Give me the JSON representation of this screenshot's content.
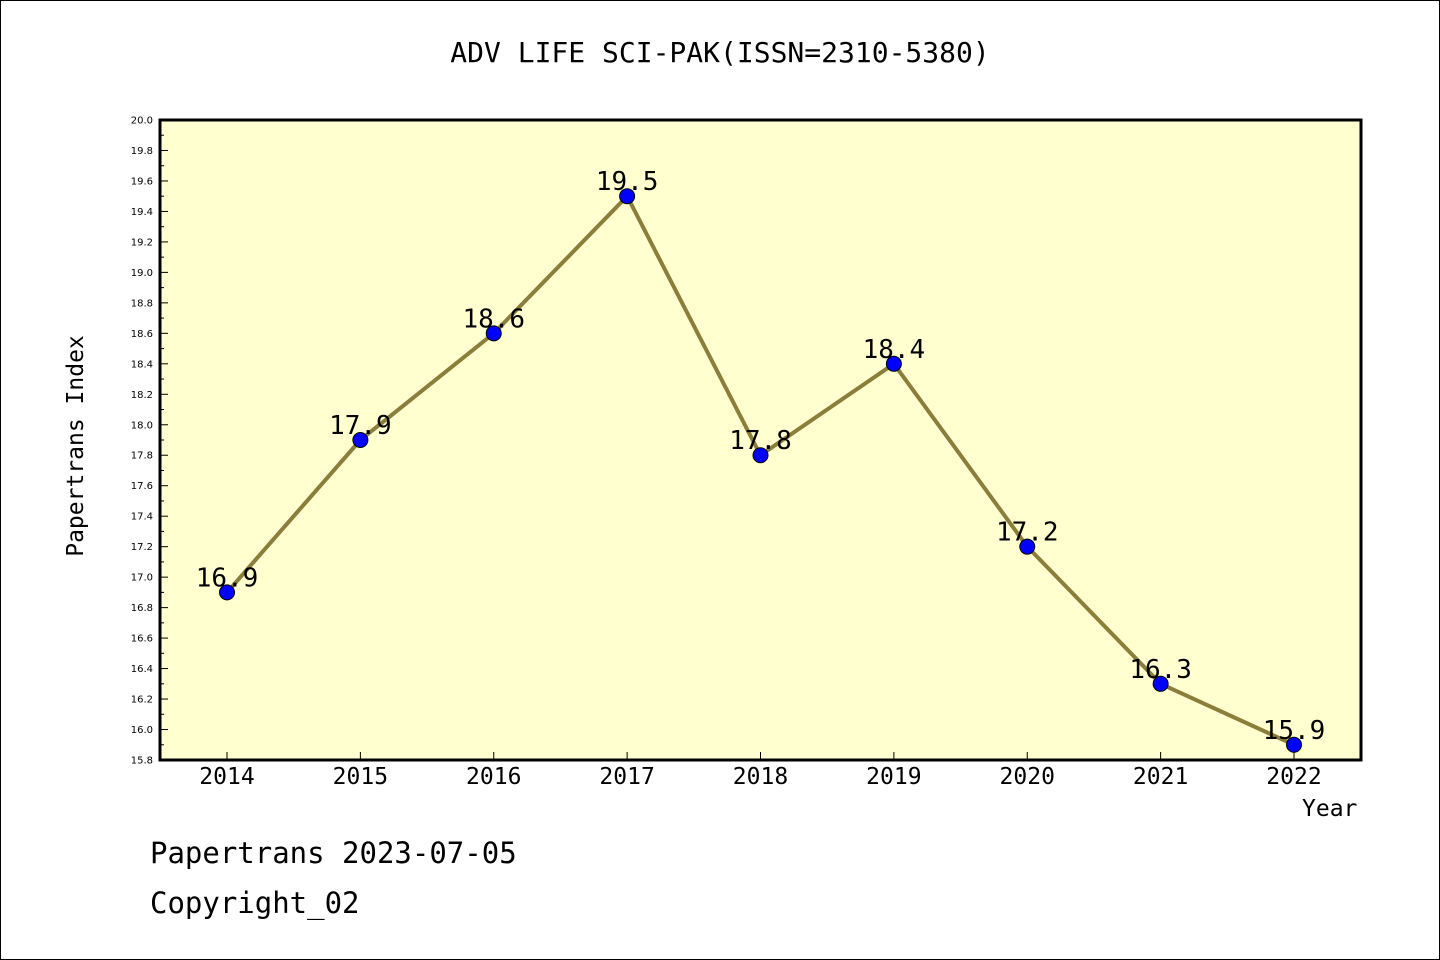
{
  "chart_data": {
    "type": "line",
    "title": "ADV LIFE SCI-PAK(ISSN=2310-5380)",
    "xlabel": "Year",
    "ylabel": "Papertrans Index",
    "categories": [
      "2014",
      "2015",
      "2016",
      "2017",
      "2018",
      "2019",
      "2020",
      "2021",
      "2022"
    ],
    "series": [
      {
        "values": [
          16.9,
          17.9,
          18.6,
          19.5,
          17.8,
          18.4,
          17.2,
          16.3,
          15.9
        ],
        "data_labels": [
          "16.9",
          "17.9",
          "18.6",
          "19.5",
          "17.8",
          "18.4",
          "17.2",
          "16.3",
          "15.9"
        ]
      }
    ],
    "ylim": [
      15.8,
      20.0
    ],
    "yticks": [
      "15.8",
      "16.0",
      "16.2",
      "16.4",
      "16.6",
      "16.8",
      "17.0",
      "17.2",
      "17.4",
      "17.6",
      "17.8",
      "18.0",
      "18.2",
      "18.4",
      "18.6",
      "18.8",
      "19.0",
      "19.2",
      "19.4",
      "19.6",
      "19.8",
      "20.0"
    ],
    "grid": false,
    "colors": {
      "plot_background": "#ffffd0",
      "line": "#8b7d3a",
      "marker": "#0000ff"
    }
  },
  "footer": {
    "date_text": "Papertrans 2023-07-05",
    "copyright_text": "Copyright_02"
  }
}
